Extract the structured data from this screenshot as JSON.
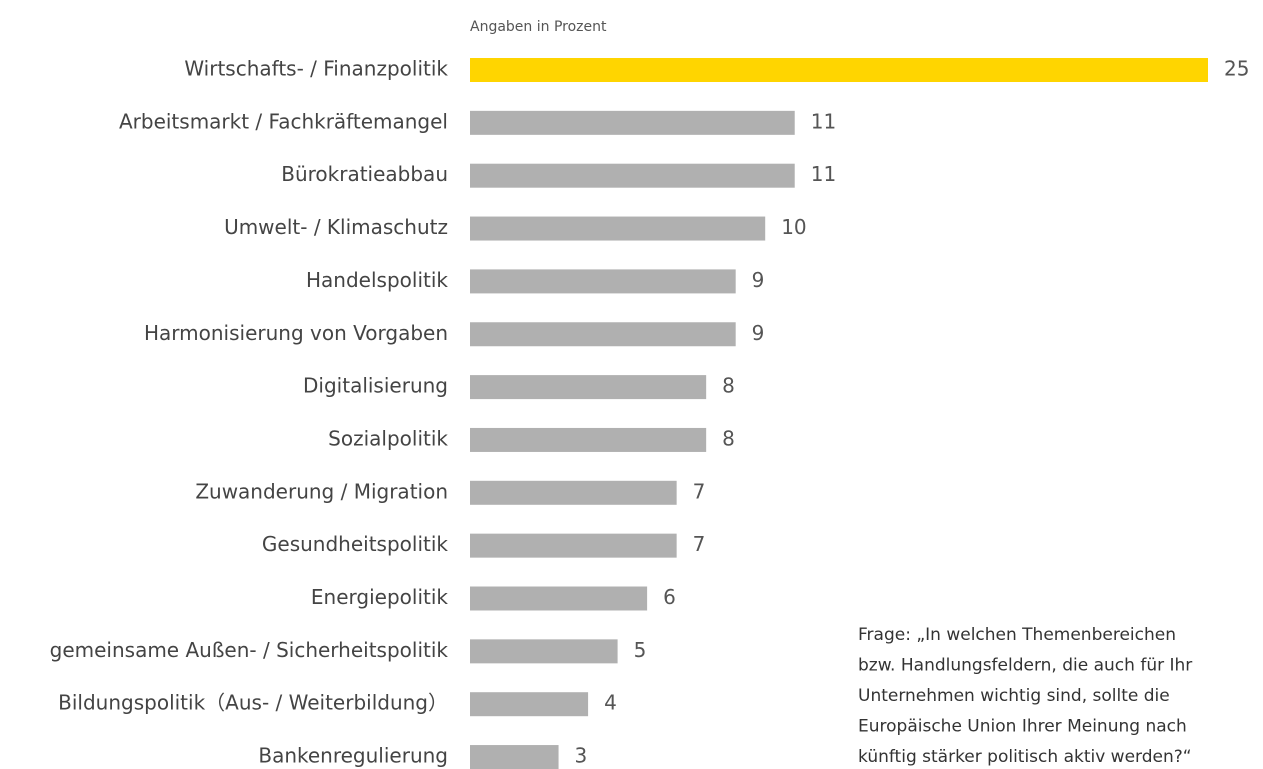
{
  "chart_data": {
    "type": "bar",
    "orientation": "horizontal",
    "subtitle": "Angaben in Prozent",
    "categories": [
      "Wirtschafts- / Finanzpolitik",
      "Arbeitsmarkt / Fachkräftemangel",
      "Bürokratieabbau",
      "Umwelt- / Klimaschutz",
      "Handelspolitik",
      "Harmonisierung von Vorgaben",
      "Digitalisierung",
      "Sozialpolitik",
      "Zuwanderung / Migration",
      "Gesundheitspolitik",
      "Energiepolitik",
      "gemeinsame Außen- / Sicherheitspolitik",
      "Bildungspolitik（Aus- / Weiterbildung）",
      "Bankenregulierung"
    ],
    "values": [
      25,
      11,
      11,
      10,
      9,
      9,
      8,
      8,
      7,
      7,
      6,
      5,
      4,
      3
    ],
    "colors": [
      "#ffd500",
      "#b0b0b0",
      "#b0b0b0",
      "#b0b0b0",
      "#b0b0b0",
      "#b0b0b0",
      "#b0b0b0",
      "#b0b0b0",
      "#b0b0b0",
      "#b0b0b0",
      "#b0b0b0",
      "#b0b0b0",
      "#b0b0b0",
      "#b0b0b0"
    ],
    "note": [
      "Frage: „In welchen Themenbereichen",
      "bzw. Handlungsfeldern, die auch für Ihr",
      "Unternehmen wichtig sind, sollte die",
      "Europäische Union Ihrer Meinung nach",
      "künftig stärker politisch aktiv werden?“"
    ]
  }
}
